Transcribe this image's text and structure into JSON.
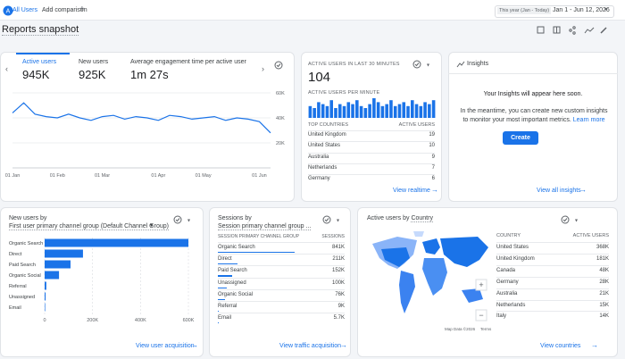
{
  "header": {
    "segment": "All Users",
    "add_comparison": "Add comparison",
    "date_preset": "This year (Jan - Today)",
    "date_range": "Jan 1 - Jun 12, 2026"
  },
  "title": "Reports snapshot",
  "kpis": [
    {
      "label": "Active users",
      "value": "945K"
    },
    {
      "label": "New users",
      "value": "925K"
    },
    {
      "label": "Average engagement time per active user",
      "value": "1m 27s"
    }
  ],
  "chart_data": [
    {
      "type": "line",
      "categories": [
        "01 Jan",
        null,
        null,
        null,
        "01 Feb",
        null,
        null,
        null,
        "01 Mar",
        null,
        null,
        null,
        null,
        "01 Apr",
        null,
        null,
        null,
        "01 May",
        null,
        null,
        null,
        null,
        "01 Jun",
        null
      ],
      "values": [
        44000,
        52000,
        43000,
        41000,
        40000,
        43000,
        40000,
        38000,
        41000,
        42000,
        39000,
        41000,
        40000,
        38000,
        42000,
        41000,
        39000,
        40000,
        41000,
        38000,
        40000,
        39000,
        37000,
        28000
      ],
      "color": "#1a73e8",
      "ylim": [
        0,
        65000
      ],
      "yticks": [
        {
          "value": 20000,
          "label": "20K"
        },
        {
          "value": 40000,
          "label": "40K"
        },
        {
          "value": 60000,
          "label": "60K"
        }
      ],
      "grid": true
    },
    {
      "type": "bar",
      "title": "ACTIVE USERS PER MINUTE",
      "values": [
        6,
        5,
        8,
        7,
        6,
        9,
        5,
        7,
        6,
        8,
        7,
        9,
        6,
        5,
        7,
        10,
        8,
        6,
        7,
        9,
        6,
        7,
        8,
        6,
        9,
        7,
        6,
        8,
        7,
        9
      ],
      "color": "#1a73e8",
      "ylim": [
        0,
        10
      ]
    },
    {
      "type": "bar",
      "orientation": "horizontal",
      "title": "New users by",
      "subtitle": "First user primary channel group (Default Channel Group)",
      "categories": [
        "Organic Search",
        "Direct",
        "Paid Search",
        "Organic Social",
        "Referral",
        "Unassigned",
        "Email"
      ],
      "values": [
        600000,
        160000,
        108000,
        60000,
        7000,
        4000,
        2000
      ],
      "color": "#1a73e8",
      "xlim": [
        0,
        600000
      ],
      "xticks": [
        0,
        {
          "value": 200000,
          "label": "200K"
        },
        {
          "value": 400000,
          "label": "400K"
        },
        {
          "value": 600000,
          "label": "600K"
        }
      ],
      "grid": true
    }
  ],
  "realtime": {
    "title": "ACTIVE USERS IN LAST 30 MINUTES",
    "count": "104",
    "columns": [
      "TOP COUNTRIES",
      "ACTIVE USERS"
    ],
    "rows": [
      [
        "United Kingdom",
        "19"
      ],
      [
        "United States",
        "10"
      ],
      [
        "Australia",
        "9"
      ],
      [
        "Netherlands",
        "7"
      ],
      [
        "Germany",
        "6"
      ]
    ],
    "link": "View realtime"
  },
  "insights": {
    "title": "Insights",
    "heading": "Your Insights will appear here soon.",
    "body": "In the meantime, you can create new custom insights to monitor your most important metrics.",
    "learn_more": "Learn more",
    "button": "Create",
    "link": "View all insights"
  },
  "new_users_link": "View user acquisition",
  "sessions": {
    "title": "Sessions",
    "by": "by",
    "dimension": "Session primary channel group ...",
    "columns": [
      "SESSION PRIMARY CHANNEL GROUP",
      "SESSIONS"
    ],
    "rows": [
      {
        "label": "Organic Search",
        "value": 841000,
        "value_label": "841K"
      },
      {
        "label": "Direct",
        "value": 211000,
        "value_label": "211K"
      },
      {
        "label": "Paid Search",
        "value": 152000,
        "value_label": "152K"
      },
      {
        "label": "Unassigned",
        "value": 100000,
        "value_label": "100K"
      },
      {
        "label": "Organic Social",
        "value": 76000,
        "value_label": "76K"
      },
      {
        "label": "Referral",
        "value": 9000,
        "value_label": "9K"
      },
      {
        "label": "Email",
        "value": 5700,
        "value_label": "5.7K"
      }
    ],
    "link": "View traffic acquisition"
  },
  "countries": {
    "title": "Active users",
    "by": "by",
    "dimension": "Country",
    "columns": [
      "COUNTRY",
      "ACTIVE USERS"
    ],
    "rows": [
      [
        "United States",
        "368K"
      ],
      [
        "United Kingdom",
        "181K"
      ],
      [
        "Canada",
        "48K"
      ],
      [
        "Germany",
        "28K"
      ],
      [
        "Australia",
        "21K"
      ],
      [
        "Netherlands",
        "15K"
      ],
      [
        "Italy",
        "14K"
      ]
    ],
    "map_data": "Map Data ©2026",
    "terms": "Terms",
    "link": "View countries"
  }
}
